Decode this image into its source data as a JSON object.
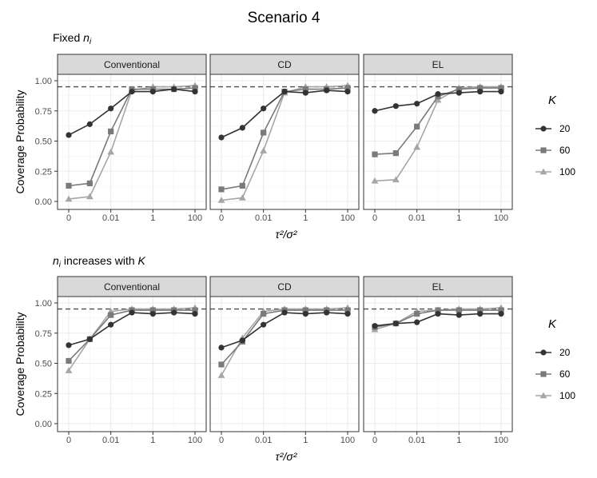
{
  "title": "Scenario 4",
  "colors": {
    "K20": "#333333",
    "K60": "#7a7a7a",
    "K100": "#a6a6a6",
    "panel_bg": "#ffffff",
    "grid": "#ebebeb",
    "strip_bg": "#d9d9d9",
    "reference_line": "#4d4d4d"
  },
  "chart_data": [
    {
      "type": "line",
      "subtitle_html": "Fixed <tspan font-style='italic'>n</tspan><tspan font-style='italic' font-size='10px' dy='3'>i</tspan>",
      "subtitle": "Fixed n_i",
      "ylabel": "Coverage  Probability",
      "xlabel": "τ²/σ²",
      "ylim": [
        0,
        1
      ],
      "y_ticks": [
        "0.00",
        "0.25",
        "0.50",
        "0.75",
        "1.00"
      ],
      "x_ticks": [
        "0",
        "0.01",
        "1",
        "100"
      ],
      "x_positions": [
        "0",
        "0.001",
        "0.01",
        "0.1",
        "1",
        "10",
        "100"
      ],
      "reference_y": 0.95,
      "legend_title": "K",
      "legend_position": "right",
      "panels": [
        {
          "label": "Conventional",
          "series": [
            {
              "name": "20",
              "marker": "circle",
              "values": [
                0.55,
                0.64,
                0.77,
                0.91,
                0.91,
                0.93,
                0.91
              ]
            },
            {
              "name": "60",
              "marker": "square",
              "values": [
                0.13,
                0.15,
                0.58,
                0.93,
                0.93,
                0.93,
                0.94
              ]
            },
            {
              "name": "100",
              "marker": "triangle",
              "values": [
                0.02,
                0.04,
                0.41,
                0.92,
                0.95,
                0.95,
                0.96
              ]
            }
          ]
        },
        {
          "label": "CD",
          "series": [
            {
              "name": "20",
              "marker": "circle",
              "values": [
                0.53,
                0.61,
                0.77,
                0.91,
                0.9,
                0.92,
                0.91
              ]
            },
            {
              "name": "60",
              "marker": "square",
              "values": [
                0.1,
                0.13,
                0.57,
                0.91,
                0.93,
                0.93,
                0.94
              ]
            },
            {
              "name": "100",
              "marker": "triangle",
              "values": [
                0.01,
                0.03,
                0.42,
                0.9,
                0.95,
                0.95,
                0.96
              ]
            }
          ]
        },
        {
          "label": "EL",
          "series": [
            {
              "name": "20",
              "marker": "circle",
              "values": [
                0.75,
                0.79,
                0.81,
                0.89,
                0.9,
                0.91,
                0.91
              ]
            },
            {
              "name": "60",
              "marker": "square",
              "values": [
                0.39,
                0.4,
                0.62,
                0.87,
                0.93,
                0.94,
                0.94
              ]
            },
            {
              "name": "100",
              "marker": "triangle",
              "values": [
                0.17,
                0.18,
                0.45,
                0.84,
                0.94,
                0.95,
                0.95
              ]
            }
          ]
        }
      ]
    },
    {
      "type": "line",
      "subtitle_html": "<tspan font-style='italic'>n</tspan><tspan font-style='italic' font-size='10px' dy='3'>i</tspan><tspan dy='-3'> increases with </tspan><tspan font-style='italic'>K</tspan>",
      "subtitle": "n_i increases with K",
      "ylabel": "Coverage  Probability",
      "xlabel": "τ²/σ²",
      "ylim": [
        0,
        1
      ],
      "y_ticks": [
        "0.00",
        "0.25",
        "0.50",
        "0.75",
        "1.00"
      ],
      "x_ticks": [
        "0",
        "0.01",
        "1",
        "100"
      ],
      "x_positions": [
        "0",
        "0.001",
        "0.01",
        "0.1",
        "1",
        "10",
        "100"
      ],
      "reference_y": 0.95,
      "legend_title": "K",
      "legend_position": "right",
      "panels": [
        {
          "label": "Conventional",
          "series": [
            {
              "name": "20",
              "marker": "circle",
              "values": [
                0.65,
                0.7,
                0.82,
                0.92,
                0.91,
                0.92,
                0.91
              ]
            },
            {
              "name": "60",
              "marker": "square",
              "values": [
                0.52,
                0.7,
                0.9,
                0.94,
                0.94,
                0.94,
                0.94
              ]
            },
            {
              "name": "100",
              "marker": "triangle",
              "values": [
                0.44,
                0.7,
                0.93,
                0.95,
                0.95,
                0.95,
                0.96
              ]
            }
          ]
        },
        {
          "label": "CD",
          "series": [
            {
              "name": "20",
              "marker": "circle",
              "values": [
                0.63,
                0.69,
                0.82,
                0.92,
                0.91,
                0.92,
                0.91
              ]
            },
            {
              "name": "60",
              "marker": "square",
              "values": [
                0.49,
                0.68,
                0.91,
                0.94,
                0.94,
                0.94,
                0.94
              ]
            },
            {
              "name": "100",
              "marker": "triangle",
              "values": [
                0.4,
                0.71,
                0.93,
                0.95,
                0.95,
                0.95,
                0.96
              ]
            }
          ]
        },
        {
          "label": "EL",
          "series": [
            {
              "name": "20",
              "marker": "circle",
              "values": [
                0.81,
                0.83,
                0.84,
                0.91,
                0.9,
                0.91,
                0.91
              ]
            },
            {
              "name": "60",
              "marker": "square",
              "values": [
                0.8,
                0.83,
                0.91,
                0.94,
                0.94,
                0.94,
                0.94
              ]
            },
            {
              "name": "100",
              "marker": "triangle",
              "values": [
                0.78,
                0.83,
                0.93,
                0.94,
                0.95,
                0.95,
                0.96
              ]
            }
          ]
        }
      ]
    }
  ]
}
